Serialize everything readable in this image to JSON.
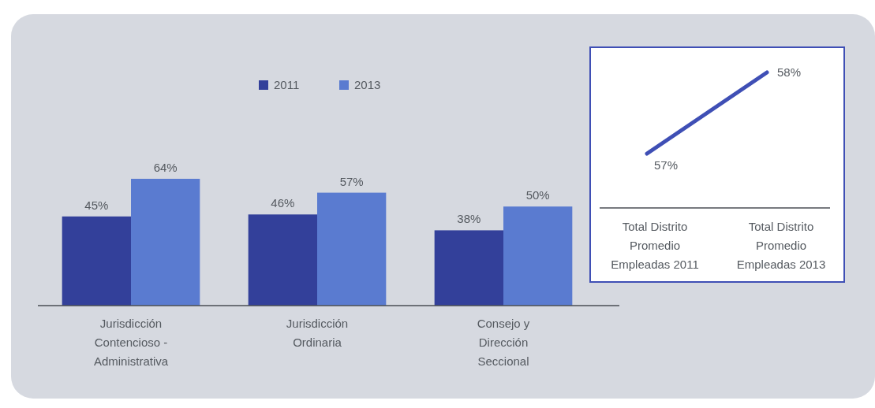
{
  "chart_data": [
    {
      "type": "bar",
      "categories": [
        "Jurisdicción Contencioso - Administrativa",
        "Jurisdicción Ordinaria",
        "Consejo y Dirección Seccional"
      ],
      "relative": false,
      "legend": "top",
      "series": [
        {
          "name": "2011",
          "color": "#33409a",
          "values": [
            45,
            46,
            38
          ],
          "value_labels": [
            "45%",
            "46%",
            "38%"
          ]
        },
        {
          "name": "2013",
          "color": "#5a7bd0",
          "values": [
            64,
            57,
            50
          ],
          "value_labels": [
            "64%",
            "57%",
            "50%"
          ]
        }
      ]
    },
    {
      "type": "line",
      "categories": [
        "Total Distrito Promedio Empleadas 2011",
        "Total Distrito Promedio Empleadas 2013"
      ],
      "legend": false,
      "series": [
        {
          "color": "#3f4fb5",
          "values": [
            57,
            58
          ],
          "value_labels": [
            "57%",
            "58%"
          ]
        }
      ]
    }
  ]
}
